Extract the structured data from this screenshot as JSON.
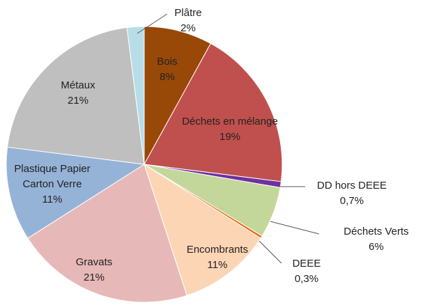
{
  "chart_data": {
    "type": "pie",
    "categories": [
      "Bois",
      "Déchets en mélange",
      "DD hors DEEE",
      "Déchets Verts",
      "DEEE",
      "Encombrants",
      "Gravats",
      "Plastique Papier Carton Verre",
      "Métaux",
      "Plâtre"
    ],
    "values": [
      8,
      19,
      0.7,
      6,
      0.3,
      11,
      21,
      11,
      21,
      2
    ],
    "value_labels": [
      "8%",
      "19%",
      "0,7%",
      "6%",
      "0,3%",
      "11%",
      "21%",
      "11%",
      "21%",
      "2%"
    ],
    "colors": [
      "#984807",
      "#c0504d",
      "#7030a0",
      "#c4d79b",
      "#e46c0a",
      "#fcd5b5",
      "#e6b9b8",
      "#95b3d7",
      "#bfbfbf",
      "#b7dee8"
    ]
  }
}
